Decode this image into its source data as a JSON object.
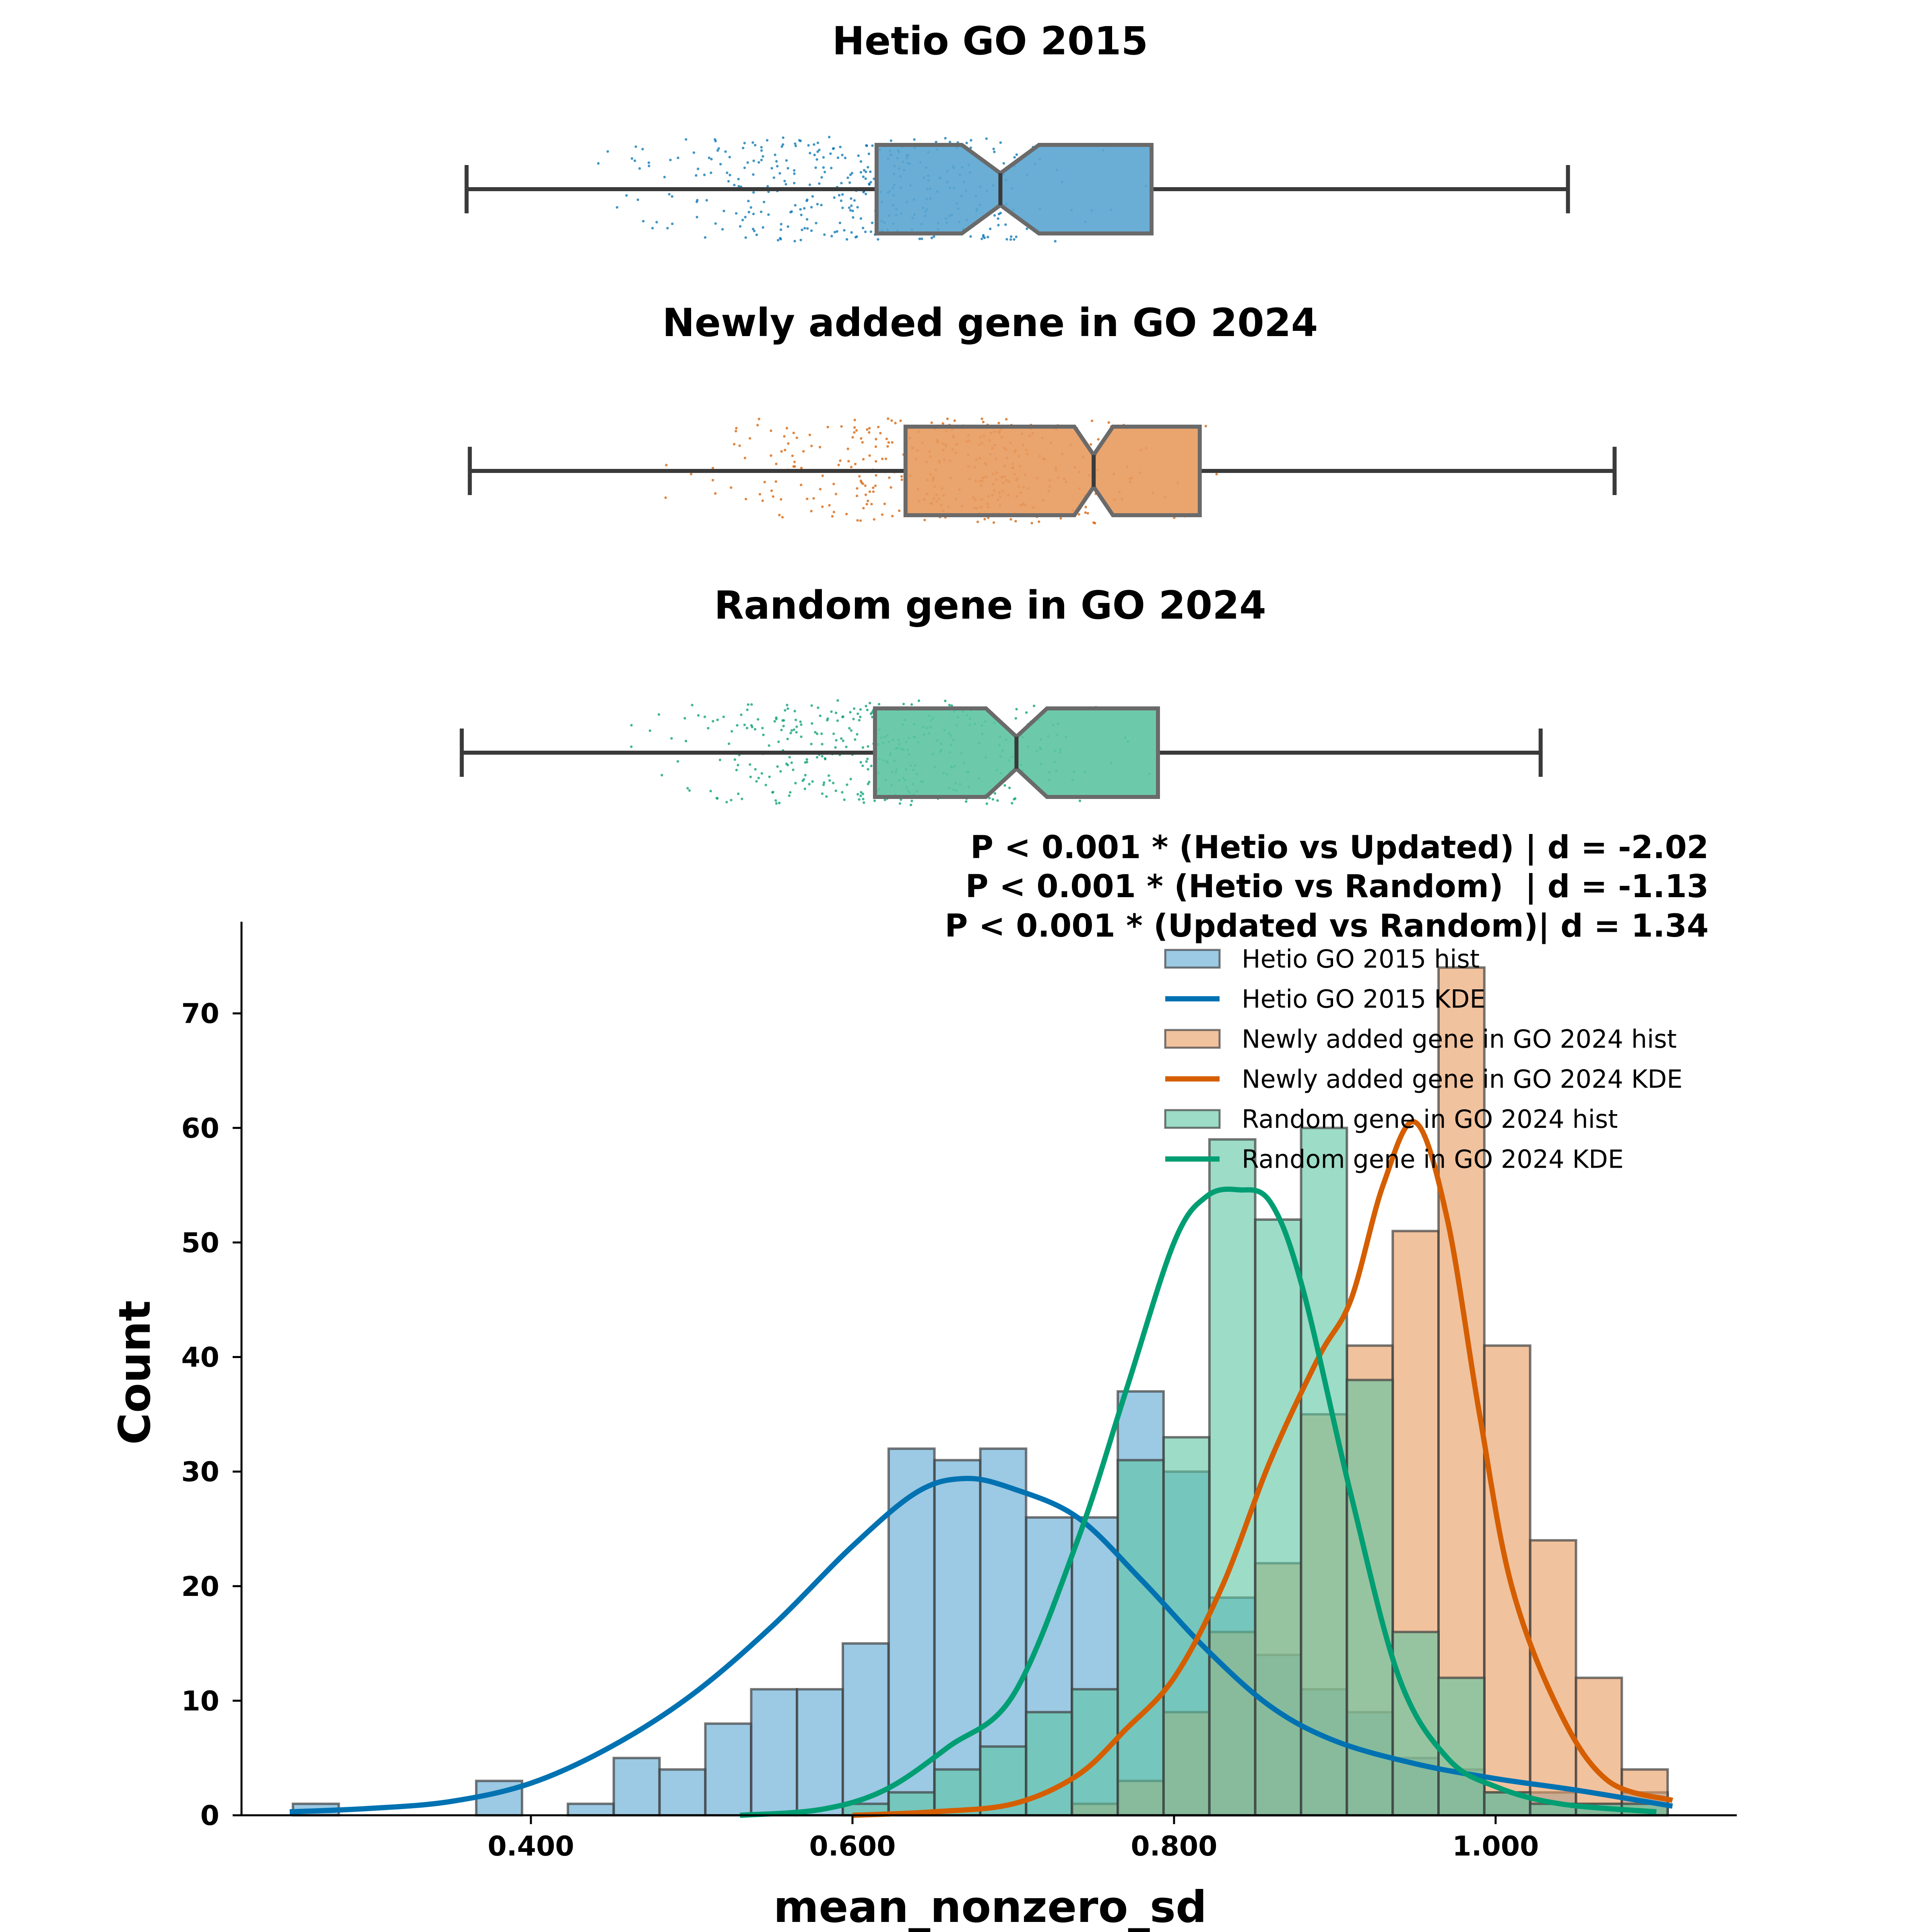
{
  "colors": {
    "hetio": "#0072B2",
    "newly": "#D55E00",
    "random": "#009E73",
    "hetio_fill": "#5aa5d1",
    "newly_fill": "#e89a5e",
    "random_fill": "#5cc4a2"
  },
  "box_panels": [
    {
      "title": "Hetio GO 2015",
      "color_key": "hetio",
      "whisker_low": 0.36,
      "q1": 0.615,
      "median": 0.692,
      "q3": 0.786,
      "whisker_high": 1.045,
      "notch_low": 0.668,
      "notch_high": 0.716
    },
    {
      "title": "Newly added gene in GO 2024",
      "color_key": "newly",
      "whisker_low": 0.362,
      "q1": 0.633,
      "median": 0.75,
      "q3": 0.816,
      "whisker_high": 1.074,
      "notch_low": 0.738,
      "notch_high": 0.762
    },
    {
      "title": "Random gene in GO 2024",
      "color_key": "random",
      "whisker_low": 0.357,
      "q1": 0.614,
      "median": 0.702,
      "q3": 0.79,
      "whisker_high": 1.028,
      "notch_low": 0.683,
      "notch_high": 0.721
    }
  ],
  "stats_lines": [
    "P < 0.001 * (Hetio vs Updated) | d = -2.02",
    "P < 0.001 * (Hetio vs Random)  | d = -1.13",
    "P < 0.001 * (Updated vs Random)| d = 1.34"
  ],
  "chart_data": {
    "type": "bar",
    "xlabel": "mean_nonzero_sd",
    "ylabel": "Count",
    "xlim": [
      0.22,
      1.15
    ],
    "ylim": [
      0,
      78
    ],
    "x_ticks": [
      0.4,
      0.6,
      0.8,
      1.0
    ],
    "x_tick_labels": [
      "0.400",
      "0.600",
      "0.800",
      "1.000"
    ],
    "y_ticks": [
      0,
      10,
      20,
      30,
      40,
      50,
      60,
      70
    ],
    "y_tick_labels": [
      "0",
      "10",
      "20",
      "30",
      "40",
      "50",
      "60",
      "70"
    ],
    "bin_start": 0.252,
    "bin_width": 0.0285,
    "series": [
      {
        "name": "Hetio GO 2015 hist",
        "color_key": "hetio",
        "counts": [
          1,
          0,
          0,
          0,
          3,
          0,
          1,
          5,
          4,
          8,
          11,
          11,
          15,
          32,
          31,
          32,
          26,
          26,
          37,
          30,
          19,
          14,
          11,
          9,
          5,
          4,
          2,
          2,
          1,
          2
        ]
      },
      {
        "name": "Newly added gene in GO 2024 hist",
        "color_key": "newly",
        "counts": [
          0,
          0,
          0,
          0,
          0,
          0,
          0,
          0,
          0,
          0,
          0,
          0,
          0,
          0,
          0,
          0,
          0,
          1,
          3,
          9,
          16,
          22,
          35,
          41,
          51,
          74,
          41,
          24,
          12,
          4
        ]
      },
      {
        "name": "Random gene in GO 2024 hist",
        "color_key": "random",
        "counts": [
          0,
          0,
          0,
          0,
          0,
          0,
          0,
          0,
          0,
          0,
          0,
          0,
          1,
          2,
          4,
          6,
          9,
          11,
          31,
          33,
          59,
          52,
          60,
          38,
          16,
          12,
          2,
          1,
          1,
          1
        ]
      }
    ],
    "kde": [
      {
        "name": "Hetio GO 2015 KDE",
        "color_key": "hetio",
        "x": [
          0.25,
          0.3,
          0.35,
          0.4,
          0.45,
          0.5,
          0.55,
          0.6,
          0.64,
          0.67,
          0.7,
          0.74,
          0.78,
          0.82,
          0.86,
          0.9,
          0.95,
          1.0,
          1.05,
          1.11
        ],
        "y": [
          0.3,
          0.6,
          1.2,
          2.8,
          6.0,
          10.5,
          16.5,
          23.5,
          28.2,
          29.4,
          28.5,
          26.0,
          20.5,
          14.5,
          9.5,
          6.5,
          4.5,
          3.2,
          2.2,
          0.8
        ]
      },
      {
        "name": "Newly added gene in GO 2024 KDE",
        "color_key": "newly",
        "x": [
          0.6,
          0.65,
          0.7,
          0.74,
          0.77,
          0.8,
          0.83,
          0.86,
          0.89,
          0.91,
          0.93,
          0.95,
          0.97,
          0.99,
          1.01,
          1.04,
          1.07,
          1.11
        ],
        "y": [
          0,
          0.3,
          1.0,
          3.5,
          7.5,
          12.0,
          20.0,
          31.0,
          40.0,
          45.0,
          55.0,
          60.5,
          52.0,
          35.0,
          20.0,
          9.0,
          3.0,
          1.3
        ]
      },
      {
        "name": "Random gene in GO 2024 KDE",
        "color_key": "random",
        "x": [
          0.53,
          0.58,
          0.62,
          0.66,
          0.7,
          0.74,
          0.77,
          0.8,
          0.82,
          0.84,
          0.86,
          0.88,
          0.91,
          0.94,
          0.97,
          1.0,
          1.04,
          1.1
        ],
        "y": [
          0,
          0.5,
          2.2,
          6.0,
          10.5,
          24.0,
          37.0,
          50.0,
          54.0,
          54.6,
          53.5,
          46.0,
          28.0,
          12.0,
          5.0,
          2.5,
          1.0,
          0.3
        ]
      }
    ],
    "legend": {
      "placement": "top-right",
      "entries": [
        {
          "label": "Hetio GO 2015 hist",
          "kind": "patch",
          "color_key": "hetio"
        },
        {
          "label": "Hetio GO 2015 KDE",
          "kind": "line",
          "color_key": "hetio"
        },
        {
          "label": "Newly added gene in GO 2024 hist",
          "kind": "patch",
          "color_key": "newly"
        },
        {
          "label": "Newly added gene in GO 2024 KDE",
          "kind": "line",
          "color_key": "newly"
        },
        {
          "label": "Random gene in GO 2024 hist",
          "kind": "patch",
          "color_key": "random"
        },
        {
          "label": "Random gene in GO 2024 KDE",
          "kind": "line",
          "color_key": "random"
        }
      ]
    }
  }
}
